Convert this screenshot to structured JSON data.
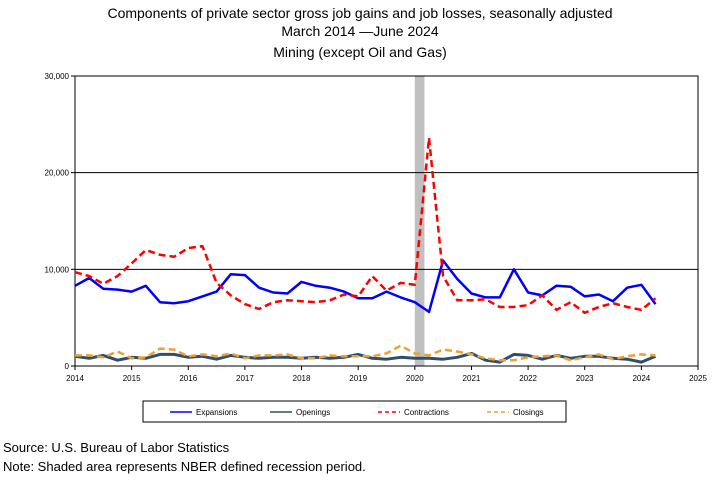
{
  "chart_data": {
    "type": "line",
    "title": "Components of private sector gross job gains and job losses, seasonally adjusted",
    "subtitle": "March 2014 —June 2024",
    "subtitle2": "Mining (except Oil and Gas)",
    "xlabel": "",
    "ylabel": "",
    "xlim": [
      2014,
      2025
    ],
    "ylim": [
      0,
      30000
    ],
    "x_ticks": [
      "2014",
      "2015",
      "2016",
      "2017",
      "2018",
      "2019",
      "2020",
      "2021",
      "2022",
      "2023",
      "2024",
      "2025"
    ],
    "y_ticks": [
      "0",
      "10,000",
      "20,000",
      "30,000"
    ],
    "grid": "horizontal",
    "legend_position": "bottom",
    "recession": {
      "start": 2020.0,
      "end": 2020.17
    },
    "x": [
      2014.0,
      2014.25,
      2014.5,
      2014.75,
      2015.0,
      2015.25,
      2015.5,
      2015.75,
      2016.0,
      2016.25,
      2016.5,
      2016.75,
      2017.0,
      2017.25,
      2017.5,
      2017.75,
      2018.0,
      2018.25,
      2018.5,
      2018.75,
      2019.0,
      2019.25,
      2019.5,
      2019.75,
      2020.0,
      2020.25,
      2020.5,
      2020.75,
      2021.0,
      2021.25,
      2021.5,
      2021.75,
      2022.0,
      2022.25,
      2022.5,
      2022.75,
      2023.0,
      2023.25,
      2023.5,
      2023.75,
      2024.0,
      2024.25
    ],
    "series": [
      {
        "name": "Expansions",
        "color": "#0000ff",
        "style": "solid",
        "width": 2.5,
        "values": [
          8300,
          9100,
          8000,
          7900,
          7700,
          8300,
          6600,
          6500,
          6700,
          7200,
          7700,
          9500,
          9400,
          8100,
          7600,
          7500,
          8700,
          8300,
          8100,
          7700,
          7000,
          7000,
          7700,
          7100,
          6600,
          5600,
          10900,
          9000,
          7500,
          7100,
          7100,
          10000,
          7600,
          7300,
          8300,
          8200,
          7200,
          7400,
          6700,
          8100,
          8400,
          6400
        ]
      },
      {
        "name": "Openings",
        "color": "#2f4f6f",
        "style": "solid",
        "width": 3,
        "values": [
          1000,
          800,
          1100,
          600,
          900,
          800,
          1200,
          1200,
          900,
          1000,
          700,
          1100,
          900,
          800,
          900,
          900,
          800,
          900,
          800,
          900,
          1200,
          800,
          700,
          900,
          800,
          800,
          700,
          900,
          1300,
          600,
          400,
          1200,
          1100,
          700,
          1100,
          800,
          1000,
          1000,
          800,
          700,
          400,
          1000
        ]
      },
      {
        "name": "Contractions",
        "color": "#ff0000",
        "style": "dashed",
        "width": 2.5,
        "values": [
          9700,
          9300,
          8500,
          9300,
          10600,
          12000,
          11500,
          11300,
          12200,
          12400,
          8600,
          7300,
          6400,
          5900,
          6600,
          6800,
          6700,
          6600,
          6800,
          7400,
          7200,
          9300,
          7800,
          8600,
          8400,
          23600,
          9300,
          6800,
          6800,
          6900,
          6100,
          6100,
          6300,
          7300,
          5800,
          6600,
          5500,
          6100,
          6500,
          6100,
          5800,
          7000
        ]
      },
      {
        "name": "Closings",
        "color": "#f0a030",
        "style": "dashed",
        "width": 2.5,
        "values": [
          1100,
          1100,
          900,
          1500,
          800,
          900,
          1800,
          1700,
          1000,
          1200,
          1000,
          1300,
          800,
          1100,
          1100,
          1200,
          800,
          800,
          1100,
          1000,
          1000,
          1000,
          1300,
          2100,
          1300,
          1100,
          1700,
          1500,
          1200,
          800,
          600,
          600,
          900,
          1000,
          1100,
          600,
          900,
          1200,
          700,
          1000,
          1200,
          1100
        ]
      }
    ]
  },
  "footer": {
    "source": "Source: U.S. Bureau of Labor Statistics",
    "note": "Note: Shaded area represents NBER defined recession period."
  }
}
